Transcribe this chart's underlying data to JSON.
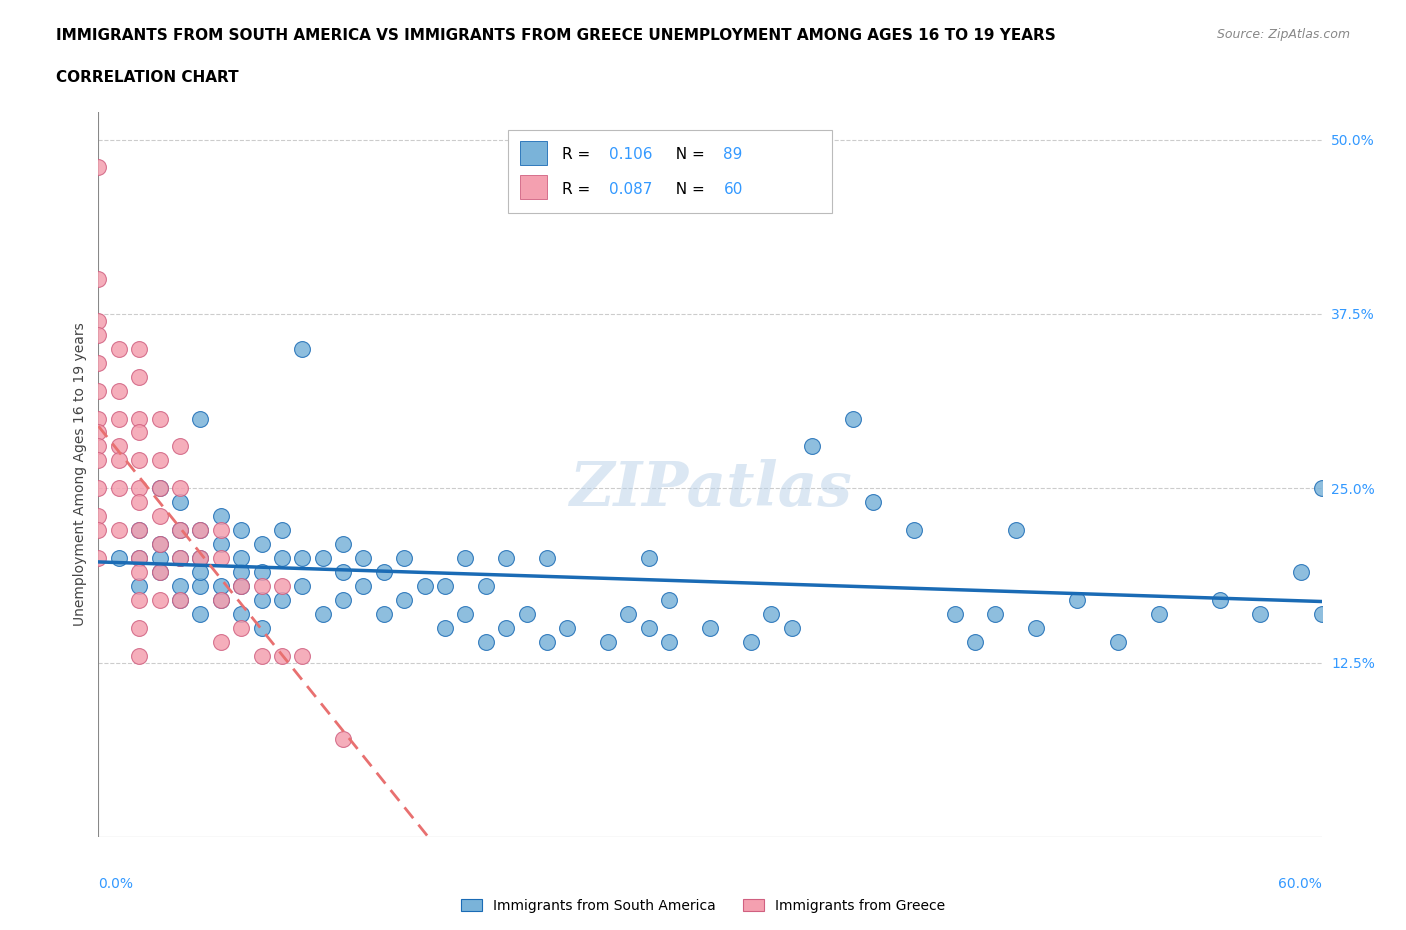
{
  "title_line1": "IMMIGRANTS FROM SOUTH AMERICA VS IMMIGRANTS FROM GREECE UNEMPLOYMENT AMONG AGES 16 TO 19 YEARS",
  "title_line2": "CORRELATION CHART",
  "source": "Source: ZipAtlas.com",
  "ylabel": "Unemployment Among Ages 16 to 19 years",
  "xmin": 0.0,
  "xmax": 0.6,
  "ymin": 0.0,
  "ymax": 0.52,
  "right_yticks": [
    0.125,
    0.25,
    0.375,
    0.5
  ],
  "right_yticklabels": [
    "12.5%",
    "25.0%",
    "37.5%",
    "50.0%"
  ],
  "south_america_color": "#7ab3d9",
  "greece_color": "#f4a0b0",
  "trendline_sa_color": "#1a6bb5",
  "trendline_gr_color": "#e87070",
  "sa_R": "0.106",
  "sa_N": "89",
  "gr_R": "0.087",
  "gr_N": "60",
  "south_america_x": [
    0.01,
    0.02,
    0.02,
    0.02,
    0.03,
    0.03,
    0.03,
    0.03,
    0.04,
    0.04,
    0.04,
    0.04,
    0.04,
    0.05,
    0.05,
    0.05,
    0.05,
    0.05,
    0.05,
    0.06,
    0.06,
    0.06,
    0.06,
    0.07,
    0.07,
    0.07,
    0.07,
    0.07,
    0.08,
    0.08,
    0.08,
    0.08,
    0.09,
    0.09,
    0.09,
    0.1,
    0.1,
    0.1,
    0.11,
    0.11,
    0.12,
    0.12,
    0.12,
    0.13,
    0.13,
    0.14,
    0.14,
    0.15,
    0.15,
    0.16,
    0.17,
    0.17,
    0.18,
    0.18,
    0.19,
    0.19,
    0.2,
    0.2,
    0.21,
    0.22,
    0.22,
    0.23,
    0.25,
    0.26,
    0.27,
    0.27,
    0.28,
    0.28,
    0.3,
    0.32,
    0.33,
    0.34,
    0.35,
    0.37,
    0.38,
    0.4,
    0.42,
    0.43,
    0.44,
    0.45,
    0.46,
    0.48,
    0.5,
    0.52,
    0.55,
    0.57,
    0.59,
    0.6,
    0.6
  ],
  "south_america_y": [
    0.2,
    0.18,
    0.2,
    0.22,
    0.19,
    0.2,
    0.21,
    0.25,
    0.17,
    0.18,
    0.2,
    0.22,
    0.24,
    0.16,
    0.18,
    0.19,
    0.2,
    0.22,
    0.3,
    0.17,
    0.18,
    0.21,
    0.23,
    0.16,
    0.18,
    0.19,
    0.2,
    0.22,
    0.15,
    0.17,
    0.19,
    0.21,
    0.17,
    0.2,
    0.22,
    0.18,
    0.2,
    0.35,
    0.16,
    0.2,
    0.17,
    0.19,
    0.21,
    0.18,
    0.2,
    0.16,
    0.19,
    0.17,
    0.2,
    0.18,
    0.15,
    0.18,
    0.16,
    0.2,
    0.14,
    0.18,
    0.15,
    0.2,
    0.16,
    0.14,
    0.2,
    0.15,
    0.14,
    0.16,
    0.15,
    0.2,
    0.14,
    0.17,
    0.15,
    0.14,
    0.16,
    0.15,
    0.28,
    0.3,
    0.24,
    0.22,
    0.16,
    0.14,
    0.16,
    0.22,
    0.15,
    0.17,
    0.14,
    0.16,
    0.17,
    0.16,
    0.19,
    0.16,
    0.25
  ],
  "greece_x": [
    0.0,
    0.0,
    0.0,
    0.0,
    0.0,
    0.0,
    0.0,
    0.0,
    0.0,
    0.0,
    0.0,
    0.0,
    0.0,
    0.0,
    0.01,
    0.01,
    0.01,
    0.01,
    0.01,
    0.01,
    0.01,
    0.02,
    0.02,
    0.02,
    0.02,
    0.02,
    0.02,
    0.02,
    0.02,
    0.02,
    0.02,
    0.02,
    0.02,
    0.02,
    0.03,
    0.03,
    0.03,
    0.03,
    0.03,
    0.03,
    0.03,
    0.04,
    0.04,
    0.04,
    0.04,
    0.04,
    0.05,
    0.05,
    0.06,
    0.06,
    0.06,
    0.06,
    0.07,
    0.07,
    0.08,
    0.08,
    0.09,
    0.09,
    0.1,
    0.12
  ],
  "greece_y": [
    0.48,
    0.4,
    0.37,
    0.36,
    0.34,
    0.32,
    0.3,
    0.29,
    0.28,
    0.27,
    0.25,
    0.23,
    0.22,
    0.2,
    0.35,
    0.32,
    0.3,
    0.28,
    0.27,
    0.25,
    0.22,
    0.35,
    0.33,
    0.3,
    0.29,
    0.27,
    0.25,
    0.24,
    0.22,
    0.2,
    0.19,
    0.17,
    0.15,
    0.13,
    0.3,
    0.27,
    0.25,
    0.23,
    0.21,
    0.19,
    0.17,
    0.28,
    0.25,
    0.22,
    0.2,
    0.17,
    0.22,
    0.2,
    0.22,
    0.2,
    0.17,
    0.14,
    0.18,
    0.15,
    0.18,
    0.13,
    0.18,
    0.13,
    0.13,
    0.07
  ]
}
